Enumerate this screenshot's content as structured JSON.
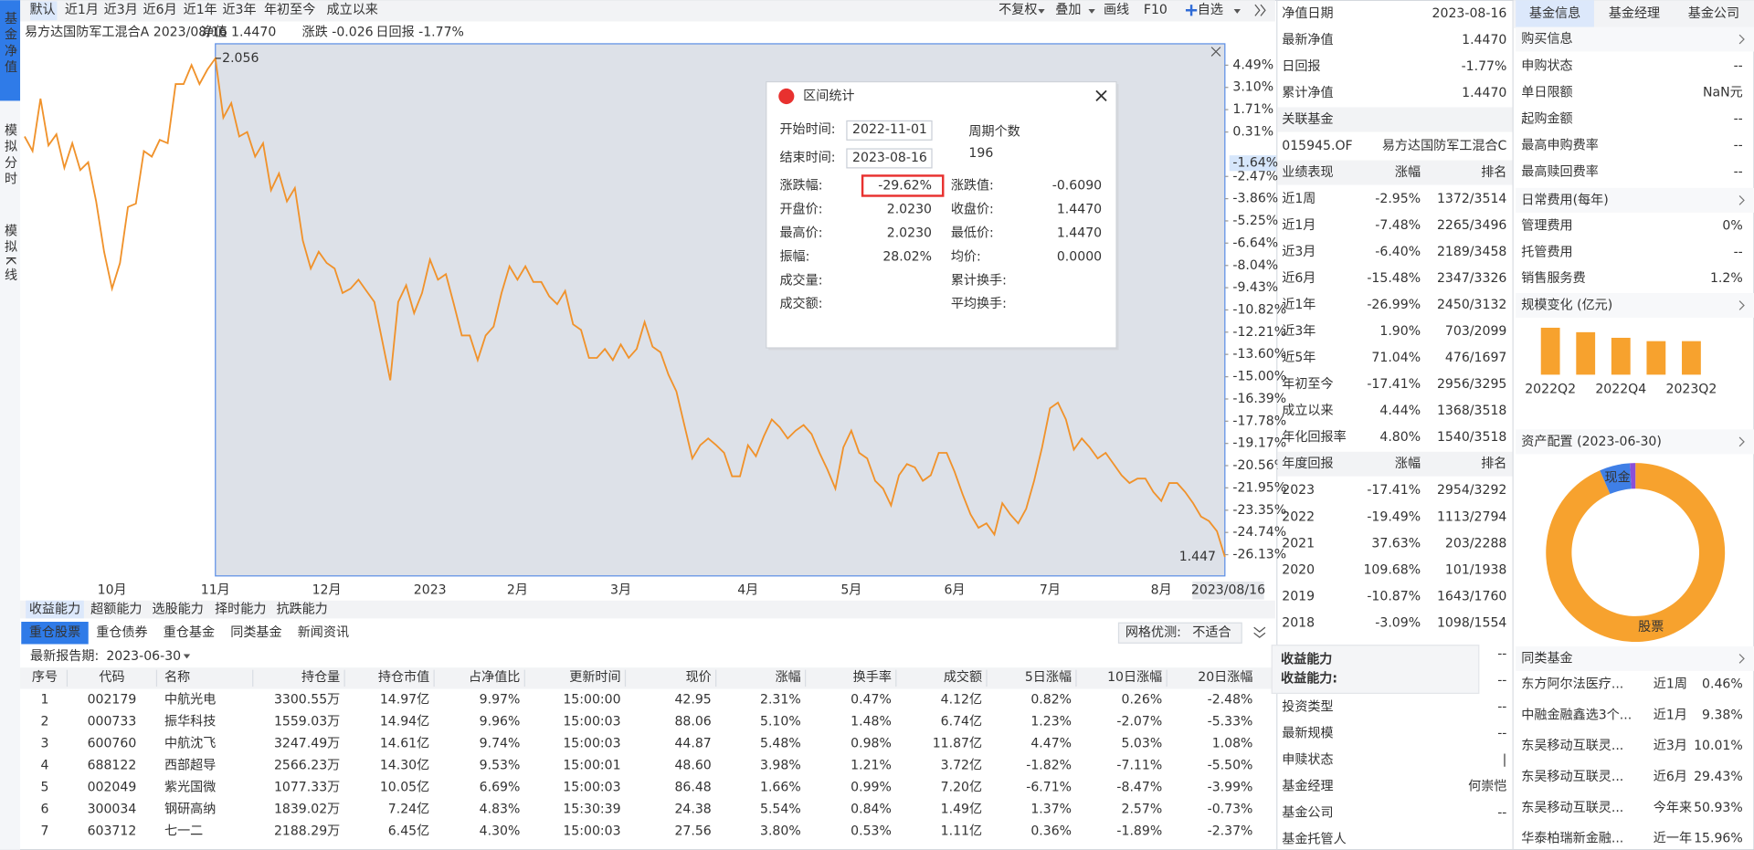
{
  "sidebar_tabs": [
    "基金净值",
    "模拟分时",
    "模拟K线"
  ],
  "toolbar": {
    "periods": [
      "默认",
      "近1月",
      "近3月",
      "近6月",
      "近1年",
      "近3年",
      "年初至今",
      "成立以来"
    ],
    "tools": [
      "不复权",
      "叠加",
      "画线",
      "F10",
      "自选"
    ]
  },
  "fund_line": {
    "fund": "易方达国防军工混合A 2023/08/16",
    "nav": "净值 1.4470",
    "change": "涨跌 -0.026",
    "daily_return": "日回报 -1.77%"
  },
  "chart_data": [
    {
      "type": "line",
      "color": "#f0922b",
      "categories": [
        null,
        null,
        null,
        null,
        null,
        null,
        null,
        null,
        null,
        null,
        null,
        "10月",
        null,
        null,
        null,
        null,
        null,
        null,
        null,
        null,
        null,
        null,
        null,
        null,
        "11月",
        null,
        null,
        null,
        null,
        null,
        null,
        null,
        null,
        null,
        null,
        null,
        null,
        null,
        "12月",
        null,
        null,
        null,
        null,
        null,
        null,
        null,
        null,
        null,
        null,
        null,
        null,
        "2023",
        null,
        null,
        null,
        null,
        null,
        null,
        null,
        null,
        null,
        null,
        "2月",
        null,
        null,
        null,
        null,
        null,
        null,
        null,
        null,
        null,
        null,
        null,
        null,
        "3月",
        null,
        null,
        null,
        null,
        null,
        null,
        null,
        null,
        null,
        null,
        null,
        null,
        null,
        null,
        null,
        "4月",
        null,
        null,
        null,
        null,
        null,
        null,
        null,
        null,
        null,
        null,
        null,
        null,
        "5月",
        null,
        null,
        null,
        null,
        null,
        null,
        null,
        null,
        null,
        null,
        null,
        null,
        "6月",
        null,
        null,
        null,
        null,
        null,
        null,
        null,
        null,
        null,
        null,
        null,
        "7月",
        null,
        null,
        null,
        null,
        null,
        null,
        null,
        null,
        null,
        null,
        null,
        null,
        null,
        "8月",
        null,
        null,
        null,
        null,
        null,
        null,
        null,
        "2023/08/16"
      ],
      "values": [
        0.03,
        -0.88,
        2.4,
        -0.53,
        0.17,
        -1.93,
        -0.39,
        -2.07,
        -1.58,
        -4.03,
        -7.18,
        -9.49,
        -7.88,
        -4.38,
        -4.17,
        -0.88,
        -1.23,
        -0.18,
        -0.39,
        3.31,
        3.31,
        4.5,
        3.31,
        4.22,
        4.92,
        1.21,
        2.12,
        0.03,
        0.31,
        -1.23,
        -0.39,
        -3.33,
        -2.28,
        -4.03,
        -3.19,
        -6.48,
        -8.23,
        -7.18,
        -7.88,
        -8.23,
        -9.76,
        -9.49,
        -8.93,
        -9.63,
        -10.32,
        -12.77,
        -15.22,
        -10.32,
        -9.28,
        -11.02,
        -9.76,
        -7.67,
        -8.93,
        -8.58,
        -10.46,
        -12.42,
        -12.42,
        -13.96,
        -12.42,
        -11.86,
        -9.76,
        -8.09,
        -8.93,
        -8.09,
        -9.07,
        -9.07,
        -9.97,
        -10.46,
        -9.63,
        -11.72,
        -12.07,
        -13.82,
        -13.82,
        -13.26,
        -13.96,
        -12.98,
        -13.82,
        -13.26,
        -11.58,
        -13.12,
        -13.47,
        -14.87,
        -15.92,
        -18.02,
        -20.11,
        -19.28,
        -18.86,
        -19.28,
        -19.76,
        -21.23,
        -21.23,
        -19.28,
        -19.97,
        -18.72,
        -17.67,
        -18.16,
        -18.86,
        -18.37,
        -18.02,
        -18.58,
        -19.76,
        -20.81,
        -22.0,
        -19.42,
        -18.37,
        -19.76,
        -20.11,
        -21.51,
        -22.0,
        -23.05,
        -21.16,
        -20.46,
        -20.67,
        -21.51,
        -21.16,
        -19.76,
        -19.76,
        -20.95,
        -22.35,
        -23.61,
        -24.45,
        -24.17,
        -24.87,
        -22.91,
        -23.61,
        -24.17,
        -23.26,
        -21.51,
        -19.42,
        -16.97,
        -16.62,
        -17.67,
        -19.56,
        -18.86,
        -19.42,
        -20.11,
        -19.76,
        -20.46,
        -21.16,
        -21.65,
        -21.37,
        -21.37,
        -22.21,
        -22.77,
        -21.65,
        -21.65,
        -22.21,
        -22.91,
        -23.75,
        -24.03,
        -24.66,
        -26.27
      ],
      "ylim": [
        -27.46,
        5.83
      ],
      "yticks": [
        {
          "value": 4.49,
          "label": "4.49%"
        },
        {
          "value": 3.1,
          "label": "3.10%"
        },
        {
          "value": 1.71,
          "label": "1.71%"
        },
        {
          "value": 0.31,
          "label": "0.31%"
        },
        {
          "value": -2.47,
          "label": "-2.47%"
        },
        {
          "value": -3.86,
          "label": "-3.86%"
        },
        {
          "value": -5.25,
          "label": "-5.25%"
        },
        {
          "value": -6.64,
          "label": "-6.64%"
        },
        {
          "value": -8.04,
          "label": "-8.04%"
        },
        {
          "value": -9.43,
          "label": "-9.43%"
        },
        {
          "value": -10.82,
          "label": "-10.82%"
        },
        {
          "value": -12.21,
          "label": "-12.21%"
        },
        {
          "value": -13.6,
          "label": "-13.60%"
        },
        {
          "value": -15.0,
          "label": "-15.00%"
        },
        {
          "value": -16.39,
          "label": "-16.39%"
        },
        {
          "value": -17.78,
          "label": "-17.78%"
        },
        {
          "value": -19.17,
          "label": "-19.17%"
        },
        {
          "value": -20.56,
          "label": "-20.56%"
        },
        {
          "value": -21.95,
          "label": "-21.95%"
        },
        {
          "value": -23.35,
          "label": "-23.35%"
        },
        {
          "value": -24.74,
          "label": "-24.74%"
        },
        {
          "value": -26.13,
          "label": "-26.13%"
        }
      ],
      "current": {
        "value": -1.64,
        "label": "-1.64%"
      },
      "max_label": "2.056",
      "min_label": "1.447"
    },
    {
      "type": "bar",
      "title": "规模变化 (亿元)",
      "categories": [
        "2022Q2",
        null,
        "2022Q4",
        null,
        "2023Q2"
      ],
      "values": [
        210,
        190,
        165,
        150,
        150
      ],
      "color": "#f7a22e"
    },
    {
      "type": "pie",
      "title": "资产配置 (2023-06-30)",
      "categories": [
        "股票",
        "现金",
        null
      ],
      "values": [
        93.5,
        5.5,
        1.0
      ],
      "colors": [
        "#f7a22e",
        "#3f7fe6",
        "#8a4fd8"
      ]
    }
  ],
  "interval_stats": {
    "title": "区间统计",
    "start_label": "开始时间:",
    "start": "2022-11-01",
    "end_label": "结束时间:",
    "end": "2023-08-16",
    "count_label": "周期个数",
    "count": "196",
    "rows": [
      [
        {
          "label": "涨跌幅:",
          "value": "-29.62%",
          "highlight": true
        },
        {
          "label": "涨跌值:",
          "value": "-0.6090"
        }
      ],
      [
        {
          "label": "开盘价:",
          "value": "2.0230"
        },
        {
          "label": "收盘价:",
          "value": "1.4470"
        }
      ],
      [
        {
          "label": "最高价:",
          "value": "2.0230"
        },
        {
          "label": "最低价:",
          "value": "1.4470"
        }
      ],
      [
        {
          "label": "振幅:",
          "value": "28.02%"
        },
        {
          "label": "均价:",
          "value": "0.0000"
        }
      ],
      [
        {
          "label": "成交量:"
        },
        {
          "label": "累计换手:"
        }
      ],
      [
        {
          "label": "成交额:"
        },
        {
          "label": "平均换手:"
        }
      ]
    ]
  },
  "ability_tabs": [
    "收益能力",
    "超额能力",
    "选股能力",
    "择时能力",
    "抗跌能力"
  ],
  "holdings_tabs": [
    "重仓股票",
    "重仓债券",
    "重仓基金",
    "同类基金",
    "新闻资讯"
  ],
  "filter": {
    "label": "网格优测:",
    "value": "不适合"
  },
  "report": {
    "label": "最新报告期:",
    "value": "2023-06-30"
  },
  "holdings_table": {
    "headers": [
      "序号",
      "代码",
      "名称",
      "持仓量",
      "持仓市值",
      "占净值比",
      "更新时间",
      "现价",
      "涨幅",
      "换手率",
      "成交额",
      "5日涨幅",
      "10日涨幅",
      "20日涨幅"
    ],
    "rows": [
      [
        "1",
        "002179",
        "中航光电",
        "3300.55万",
        "14.97亿",
        "9.97%",
        "15:00:00",
        "42.95",
        "2.31%",
        "0.47%",
        "4.12亿",
        "0.82%",
        "0.26%",
        "-2.48%"
      ],
      [
        "2",
        "000733",
        "振华科技",
        "1559.03万",
        "14.94亿",
        "9.96%",
        "15:00:03",
        "88.06",
        "5.10%",
        "1.48%",
        "6.74亿",
        "1.23%",
        "-2.07%",
        "-5.33%"
      ],
      [
        "3",
        "600760",
        "中航沈飞",
        "3247.49万",
        "14.61亿",
        "9.74%",
        "15:00:03",
        "44.87",
        "5.48%",
        "0.98%",
        "11.87亿",
        "4.47%",
        "5.03%",
        "1.08%"
      ],
      [
        "4",
        "688122",
        "西部超导",
        "2566.23万",
        "14.30亿",
        "9.53%",
        "15:00:01",
        "48.60",
        "3.98%",
        "1.21%",
        "3.72亿",
        "-1.82%",
        "-7.11%",
        "-5.50%"
      ],
      [
        "5",
        "002049",
        "紫光国微",
        "1077.33万",
        "10.05亿",
        "6.69%",
        "15:00:03",
        "86.48",
        "1.66%",
        "0.99%",
        "7.20亿",
        "-6.71%",
        "-8.47%",
        "-3.99%"
      ],
      [
        "6",
        "300034",
        "钢研高纳",
        "1839.02万",
        "7.24亿",
        "4.83%",
        "15:30:39",
        "24.38",
        "5.54%",
        "0.84%",
        "1.49亿",
        "1.37%",
        "2.57%",
        "-0.73%"
      ],
      [
        "7",
        "603712",
        "七一二",
        "2188.29万",
        "6.45亿",
        "4.30%",
        "15:00:03",
        "27.56",
        "3.80%",
        "0.53%",
        "1.11亿",
        "0.36%",
        "-1.89%",
        "-2.37%"
      ]
    ]
  },
  "nav_info": [
    {
      "label": "净值日期",
      "value": "2023-08-16",
      "color": "#333333"
    },
    {
      "label": "最新净值",
      "value": "1.4470",
      "color": "#e8312f"
    },
    {
      "label": "日回报",
      "value": "-1.77%",
      "color": "#1a9a3c"
    },
    {
      "label": "累计净值",
      "value": "1.4470",
      "color": "#e8312f"
    }
  ],
  "related": {
    "title": "关联基金",
    "code": "015945.OF",
    "name": "易方达国防军工混合C"
  },
  "performance": {
    "headers": [
      "业绩表现",
      "涨幅",
      "排名"
    ],
    "rows": [
      [
        "近1周",
        "-2.95%",
        "1372/3514"
      ],
      [
        "近1月",
        "-7.48%",
        "2265/3496"
      ],
      [
        "近3月",
        "-6.40%",
        "2189/3458"
      ],
      [
        "近6月",
        "-15.48%",
        "2347/3326"
      ],
      [
        "近1年",
        "-26.99%",
        "2450/3132"
      ],
      [
        "近3年",
        "1.90%",
        "703/2099"
      ],
      [
        "近5年",
        "71.04%",
        "476/1697"
      ],
      [
        "年初至今",
        "-17.41%",
        "2956/3295"
      ],
      [
        "成立以来",
        "4.44%",
        "1368/3518"
      ],
      [
        "年化回报率",
        "4.80%",
        "1540/3518"
      ]
    ]
  },
  "annual": {
    "headers": [
      "年度回报",
      "涨幅",
      "排名"
    ],
    "rows": [
      [
        "2023",
        "-17.41%",
        "2954/3292"
      ],
      [
        "2022",
        "-19.49%",
        "1113/2794"
      ],
      [
        "2021",
        "37.63%",
        "203/2288"
      ],
      [
        "2020",
        "109.68%",
        "101/1938"
      ],
      [
        "2019",
        "-10.87%",
        "1643/1760"
      ],
      [
        "2018",
        "-3.09%",
        "1098/1554"
      ]
    ]
  },
  "other_info": [
    {
      "value": "--"
    },
    {
      "value": "--"
    },
    {
      "label": "投资类型",
      "value": "--"
    },
    {
      "label": "最新规模",
      "value": "--"
    },
    {
      "label": "申赎状态",
      "value": "|"
    },
    {
      "label": "基金经理",
      "value": "何崇恺"
    },
    {
      "label": "基金公司",
      "value": "--"
    },
    {
      "label": "基金托管人"
    }
  ],
  "tooltip": {
    "title": "收益能力",
    "label": "收益能力:"
  },
  "info_tabs": [
    "基金信息",
    "基金经理",
    "基金公司"
  ],
  "purchase": {
    "title": "购买信息",
    "rows": [
      [
        "申购状态",
        "--"
      ],
      [
        "单日限额",
        "NaN元"
      ],
      [
        "起购金额",
        "--"
      ],
      [
        "最高申购费率",
        "--"
      ],
      [
        "最高赎回费率",
        "--"
      ]
    ]
  },
  "fees": {
    "title": "日常费用(每年)",
    "rows": [
      [
        "管理费用",
        "0%"
      ],
      [
        "托管费用",
        "--"
      ],
      [
        "销售服务费",
        "1.2%"
      ]
    ]
  },
  "peer_funds": {
    "title": "同类基金",
    "rows": [
      [
        "东方阿尔法医疗...",
        "近1周",
        "0.46%"
      ],
      [
        "中融金融鑫选3个...",
        "近1月",
        "9.38%"
      ],
      [
        "东吴移动互联灵...",
        "近3月",
        "10.01%"
      ],
      [
        "东吴移动互联灵...",
        "近6月",
        "29.43%"
      ],
      [
        "东吴移动互联灵...",
        "今年来",
        "50.93%"
      ],
      [
        "华泰柏瑞新金融...",
        "近一年",
        "15.96%"
      ]
    ]
  }
}
